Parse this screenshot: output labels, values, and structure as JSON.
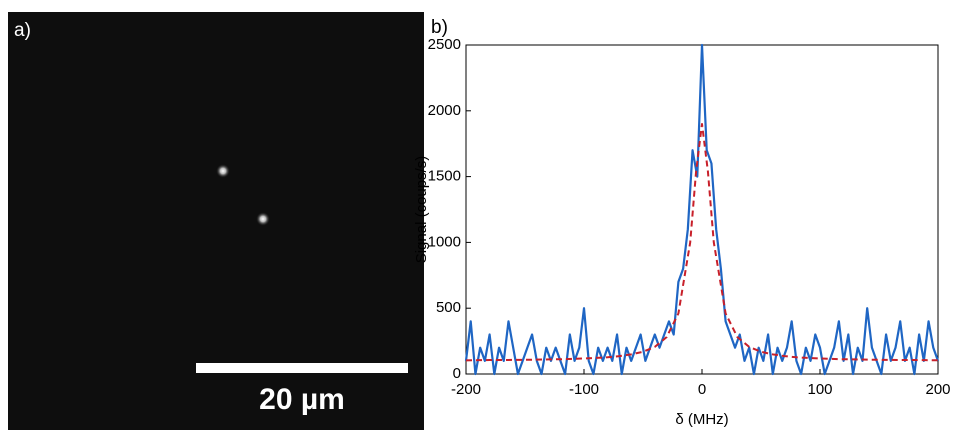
{
  "panel_a": {
    "label": "a)",
    "scale_bar_label": "20 µm"
  },
  "chart_data": {
    "type": "line",
    "panel_label": "b)",
    "ylabel": "Signal (coups/s)",
    "xlabel": "δ (MHz)",
    "xlim": [
      -200,
      200
    ],
    "xticks": [
      -200,
      -100,
      0,
      100,
      200
    ],
    "ylim": [
      0,
      2500
    ],
    "yticks": [
      0,
      500,
      1000,
      1500,
      2000,
      2500
    ],
    "series": [
      {
        "color": "#1f66c4",
        "dashed": false,
        "x": [
          -200,
          -196,
          -192,
          -188,
          -184,
          -180,
          -176,
          -172,
          -168,
          -164,
          -160,
          -156,
          -152,
          -148,
          -144,
          -140,
          -136,
          -132,
          -128,
          -124,
          -120,
          -116,
          -112,
          -108,
          -104,
          -100,
          -96,
          -92,
          -88,
          -84,
          -80,
          -76,
          -72,
          -68,
          -64,
          -60,
          -56,
          -52,
          -48,
          -44,
          -40,
          -36,
          -32,
          -28,
          -24,
          -20,
          -16,
          -12,
          -8,
          -4,
          0,
          4,
          8,
          12,
          16,
          20,
          24,
          28,
          32,
          36,
          40,
          44,
          48,
          52,
          56,
          60,
          64,
          68,
          72,
          76,
          80,
          84,
          88,
          92,
          96,
          100,
          104,
          108,
          112,
          116,
          120,
          124,
          128,
          132,
          136,
          140,
          144,
          148,
          152,
          156,
          160,
          164,
          168,
          172,
          176,
          180,
          184,
          188,
          192,
          196,
          200
        ],
        "values": [
          100,
          400,
          0,
          200,
          100,
          300,
          0,
          200,
          100,
          400,
          200,
          0,
          100,
          200,
          300,
          100,
          0,
          200,
          100,
          200,
          100,
          0,
          300,
          100,
          200,
          500,
          100,
          0,
          200,
          100,
          200,
          100,
          300,
          0,
          200,
          100,
          200,
          300,
          100,
          200,
          300,
          200,
          300,
          400,
          300,
          700,
          800,
          1100,
          1700,
          1500,
          2500,
          1700,
          1600,
          1100,
          800,
          400,
          300,
          200,
          300,
          100,
          200,
          0,
          200,
          100,
          300,
          0,
          200,
          100,
          200,
          400,
          100,
          0,
          200,
          100,
          300,
          200,
          0,
          100,
          200,
          400,
          100,
          300,
          0,
          200,
          100,
          500,
          200,
          100,
          0,
          300,
          100,
          200,
          400,
          100,
          200,
          0,
          300,
          100,
          400,
          200,
          100
        ]
      },
      {
        "color": "#c8202a",
        "dashed": true,
        "x": [
          -200,
          -190,
          -180,
          -170,
          -160,
          -150,
          -140,
          -130,
          -120,
          -110,
          -100,
          -90,
          -80,
          -70,
          -60,
          -50,
          -40,
          -30,
          -20,
          -10,
          -5,
          0,
          5,
          10,
          20,
          30,
          40,
          50,
          60,
          70,
          80,
          90,
          100,
          110,
          120,
          130,
          140,
          150,
          160,
          170,
          180,
          190,
          200
        ],
        "values": [
          104,
          105,
          106,
          106,
          107,
          108,
          109,
          111,
          112,
          115,
          118,
          122,
          127,
          136,
          149,
          169,
          206,
          280,
          460,
          1000,
          1540,
          1900,
          1540,
          1000,
          460,
          280,
          206,
          169,
          149,
          136,
          127,
          122,
          118,
          115,
          112,
          111,
          109,
          108,
          107,
          106,
          106,
          105,
          104
        ]
      }
    ]
  }
}
